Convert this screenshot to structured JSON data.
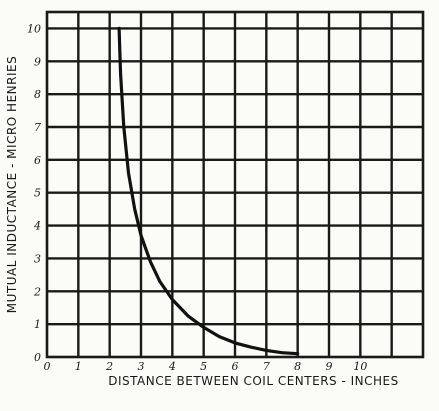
{
  "chart_data": {
    "type": "line",
    "title": "",
    "xlabel": "DISTANCE BETWEEN COIL CENTERS - INCHES",
    "ylabel": "MUTUAL INDUCTANCE - MICRO HENRIES",
    "xlim": [
      0,
      12
    ],
    "ylim": [
      0,
      10.5
    ],
    "grid": true,
    "x_ticks": [
      "0",
      "1",
      "2",
      "3",
      "4",
      "5",
      "6",
      "7",
      "8",
      "9",
      "10"
    ],
    "y_ticks": [
      "0",
      "1",
      "2",
      "3",
      "4",
      "5",
      "6",
      "7",
      "8",
      "9",
      "10"
    ],
    "series": [
      {
        "x": [
          2.3,
          2.35,
          2.45,
          2.6,
          2.8,
          3.0,
          3.3,
          3.6,
          4.0,
          4.5,
          5.0,
          5.5,
          6.0,
          6.5,
          7.0,
          7.5,
          8.0
        ],
        "y": [
          10.0,
          8.6,
          7.0,
          5.6,
          4.5,
          3.7,
          2.9,
          2.3,
          1.75,
          1.25,
          0.9,
          0.62,
          0.43,
          0.3,
          0.2,
          0.13,
          0.1
        ]
      }
    ]
  }
}
